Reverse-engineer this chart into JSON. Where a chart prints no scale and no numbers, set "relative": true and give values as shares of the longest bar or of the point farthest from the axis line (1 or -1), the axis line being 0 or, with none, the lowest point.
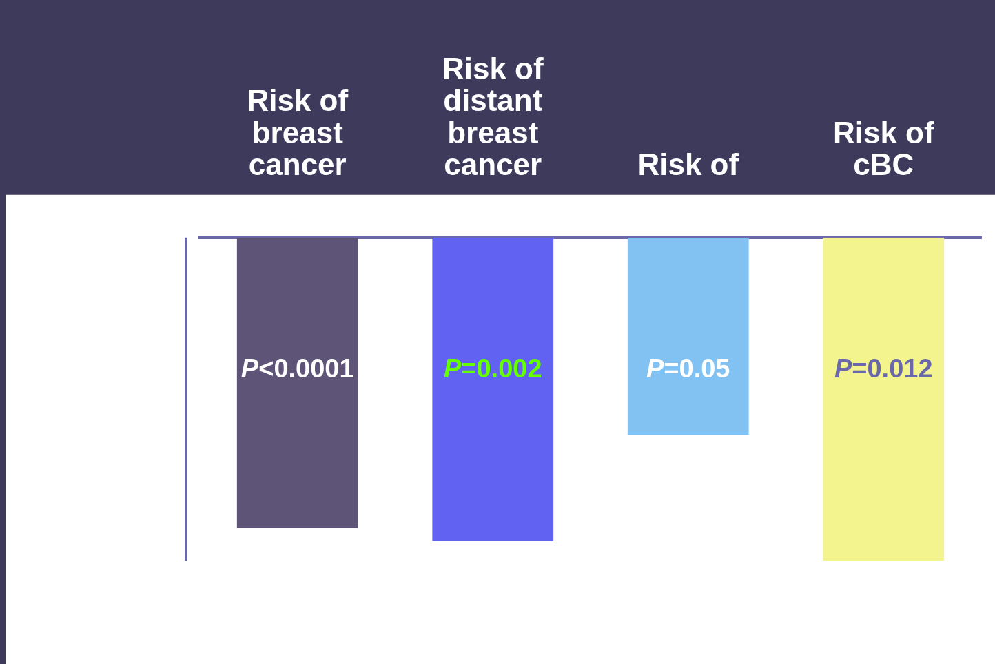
{
  "chart_data": {
    "type": "bar",
    "relative": true,
    "categories": [
      "Risk of breast cancer",
      "Risk of distant breast cancer",
      "Risk of",
      "Risk of cBC"
    ],
    "values": [
      -0.9,
      -0.94,
      -0.61,
      -1
    ],
    "colors": [
      "#5e5478",
      "#6262f2",
      "#82c2f2",
      "#f4f48e"
    ],
    "annotations": [
      "P<0.0001",
      "P=0.002",
      "P=0.05",
      "P=0.012"
    ],
    "grid": false,
    "legend": false
  }
}
